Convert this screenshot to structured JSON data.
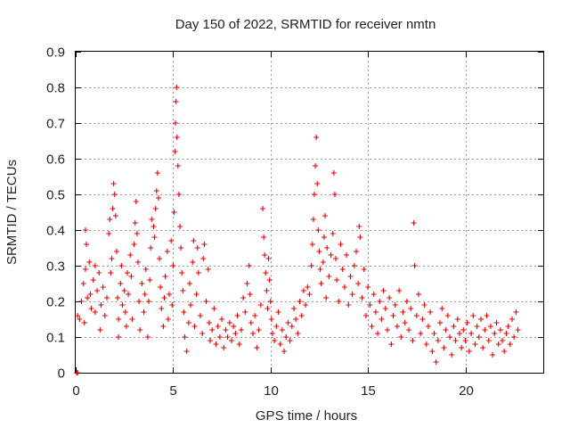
{
  "chart_data": {
    "type": "scatter",
    "title": "Day 150 of 2022, SRMTID for receiver nmtn",
    "xlabel": "GPS time / hours",
    "ylabel": "SRMTID / TECUs",
    "xlim": [
      0,
      24
    ],
    "ylim": [
      0,
      0.9
    ],
    "xticks": [
      0,
      5,
      10,
      15,
      20
    ],
    "xtick_labels": [
      "0",
      "5",
      "10",
      "15",
      "20"
    ],
    "yticks": [
      0,
      0.1,
      0.2,
      0.3,
      0.4,
      0.5,
      0.6,
      0.7,
      0.8,
      0.9
    ],
    "ytick_labels": [
      "0",
      "0.1",
      "0.2",
      "0.3",
      "0.4",
      "0.5",
      "0.6",
      "0.7",
      "0.8",
      "0.9"
    ],
    "grid": true,
    "marker": "plus",
    "color": "#e60000",
    "series": [
      {
        "name": "SRMTID",
        "points": [
          [
            0.05,
            0.0
          ],
          [
            0.1,
            0.0
          ],
          [
            0.1,
            0.16
          ],
          [
            0.2,
            0.15
          ],
          [
            0.3,
            0.2
          ],
          [
            0.4,
            0.25
          ],
          [
            0.45,
            0.14
          ],
          [
            0.5,
            0.29
          ],
          [
            0.5,
            0.4
          ],
          [
            0.55,
            0.36
          ],
          [
            0.6,
            0.21
          ],
          [
            0.7,
            0.31
          ],
          [
            0.75,
            0.22
          ],
          [
            0.8,
            0.18
          ],
          [
            0.9,
            0.26
          ],
          [
            1.0,
            0.3
          ],
          [
            1.0,
            0.17
          ],
          [
            1.1,
            0.23
          ],
          [
            1.2,
            0.28
          ],
          [
            1.25,
            0.12
          ],
          [
            1.3,
            0.19
          ],
          [
            1.4,
            0.24
          ],
          [
            1.5,
            0.16
          ],
          [
            1.6,
            0.21
          ],
          [
            1.7,
            0.39
          ],
          [
            1.75,
            0.43
          ],
          [
            1.8,
            0.28
          ],
          [
            1.85,
            0.32
          ],
          [
            1.9,
            0.46
          ],
          [
            1.95,
            0.53
          ],
          [
            2.0,
            0.5
          ],
          [
            2.05,
            0.44
          ],
          [
            2.1,
            0.34
          ],
          [
            2.15,
            0.21
          ],
          [
            2.2,
            0.15
          ],
          [
            2.2,
            0.1
          ],
          [
            2.3,
            0.25
          ],
          [
            2.35,
            0.3
          ],
          [
            2.4,
            0.19
          ],
          [
            2.5,
            0.23
          ],
          [
            2.55,
            0.17
          ],
          [
            2.6,
            0.13
          ],
          [
            2.65,
            0.28
          ],
          [
            2.7,
            0.22
          ],
          [
            2.8,
            0.33
          ],
          [
            2.85,
            0.27
          ],
          [
            2.9,
            0.15
          ],
          [
            3.0,
            0.36
          ],
          [
            3.05,
            0.42
          ],
          [
            3.1,
            0.48
          ],
          [
            3.15,
            0.39
          ],
          [
            3.2,
            0.31
          ],
          [
            3.25,
            0.2
          ],
          [
            3.3,
            0.12
          ],
          [
            3.4,
            0.25
          ],
          [
            3.5,
            0.17
          ],
          [
            3.55,
            0.22
          ],
          [
            3.6,
            0.29
          ],
          [
            3.7,
            0.1
          ],
          [
            3.75,
            0.2
          ],
          [
            3.8,
            0.26
          ],
          [
            3.85,
            0.35
          ],
          [
            3.9,
            0.43
          ],
          [
            4.0,
            0.41
          ],
          [
            4.05,
            0.38
          ],
          [
            4.1,
            0.46
          ],
          [
            4.15,
            0.51
          ],
          [
            4.2,
            0.56
          ],
          [
            4.25,
            0.49
          ],
          [
            4.3,
            0.32
          ],
          [
            4.35,
            0.24
          ],
          [
            4.4,
            0.18
          ],
          [
            4.5,
            0.13
          ],
          [
            4.55,
            0.21
          ],
          [
            4.6,
            0.27
          ],
          [
            4.7,
            0.34
          ],
          [
            4.75,
            0.15
          ],
          [
            4.8,
            0.22
          ],
          [
            4.9,
            0.37
          ],
          [
            4.95,
            0.19
          ],
          [
            5.0,
            0.3
          ],
          [
            5.05,
            0.45
          ],
          [
            5.1,
            0.62
          ],
          [
            5.12,
            0.7
          ],
          [
            5.15,
            0.76
          ],
          [
            5.18,
            0.8
          ],
          [
            5.2,
            0.66
          ],
          [
            5.25,
            0.58
          ],
          [
            5.3,
            0.5
          ],
          [
            5.35,
            0.41
          ],
          [
            5.4,
            0.35
          ],
          [
            5.45,
            0.28
          ],
          [
            5.5,
            0.23
          ],
          [
            5.55,
            0.17
          ],
          [
            5.6,
            0.1
          ],
          [
            5.7,
            0.06
          ],
          [
            5.8,
            0.14
          ],
          [
            5.85,
            0.25
          ],
          [
            5.9,
            0.19
          ],
          [
            6.0,
            0.31
          ],
          [
            6.05,
            0.37
          ],
          [
            6.1,
            0.13
          ],
          [
            6.2,
            0.22
          ],
          [
            6.25,
            0.35
          ],
          [
            6.3,
            0.28
          ],
          [
            6.4,
            0.16
          ],
          [
            6.5,
            0.11
          ],
          [
            6.55,
            0.32
          ],
          [
            6.6,
            0.36
          ],
          [
            6.7,
            0.2
          ],
          [
            6.8,
            0.29
          ],
          [
            6.85,
            0.14
          ],
          [
            6.9,
            0.09
          ],
          [
            7.0,
            0.12
          ],
          [
            7.1,
            0.18
          ],
          [
            7.2,
            0.08
          ],
          [
            7.3,
            0.13
          ],
          [
            7.4,
            0.1
          ],
          [
            7.5,
            0.15
          ],
          [
            7.6,
            0.07
          ],
          [
            7.7,
            0.12
          ],
          [
            7.8,
            0.1
          ],
          [
            7.9,
            0.14
          ],
          [
            8.0,
            0.09
          ],
          [
            8.1,
            0.13
          ],
          [
            8.2,
            0.11
          ],
          [
            8.3,
            0.16
          ],
          [
            8.4,
            0.08
          ],
          [
            8.5,
            0.12
          ],
          [
            8.6,
            0.21
          ],
          [
            8.7,
            0.17
          ],
          [
            8.8,
            0.25
          ],
          [
            8.9,
            0.3
          ],
          [
            8.95,
            0.22
          ],
          [
            9.0,
            0.14
          ],
          [
            9.1,
            0.11
          ],
          [
            9.2,
            0.16
          ],
          [
            9.3,
            0.07
          ],
          [
            9.4,
            0.12
          ],
          [
            9.5,
            0.19
          ],
          [
            9.6,
            0.46
          ],
          [
            9.65,
            0.38
          ],
          [
            9.7,
            0.33
          ],
          [
            9.75,
            0.28
          ],
          [
            9.8,
            0.23
          ],
          [
            9.85,
            0.18
          ],
          [
            9.9,
            0.32
          ],
          [
            9.95,
            0.26
          ],
          [
            10.0,
            0.2
          ],
          [
            10.05,
            0.15
          ],
          [
            10.1,
            0.11
          ],
          [
            10.2,
            0.09
          ],
          [
            10.3,
            0.13
          ],
          [
            10.4,
            0.17
          ],
          [
            10.5,
            0.08
          ],
          [
            10.6,
            0.12
          ],
          [
            10.7,
            0.06
          ],
          [
            10.8,
            0.1
          ],
          [
            10.9,
            0.14
          ],
          [
            11.0,
            0.09
          ],
          [
            11.1,
            0.13
          ],
          [
            11.2,
            0.18
          ],
          [
            11.3,
            0.15
          ],
          [
            11.4,
            0.11
          ],
          [
            11.5,
            0.2
          ],
          [
            11.6,
            0.16
          ],
          [
            11.7,
            0.23
          ],
          [
            11.8,
            0.19
          ],
          [
            11.9,
            0.24
          ],
          [
            12.0,
            0.22
          ],
          [
            12.1,
            0.3
          ],
          [
            12.15,
            0.36
          ],
          [
            12.2,
            0.43
          ],
          [
            12.25,
            0.5
          ],
          [
            12.3,
            0.58
          ],
          [
            12.35,
            0.66
          ],
          [
            12.4,
            0.53
          ],
          [
            12.45,
            0.4
          ],
          [
            12.5,
            0.34
          ],
          [
            12.55,
            0.29
          ],
          [
            12.6,
            0.25
          ],
          [
            12.7,
            0.31
          ],
          [
            12.75,
            0.38
          ],
          [
            12.8,
            0.44
          ],
          [
            12.85,
            0.21
          ],
          [
            12.9,
            0.35
          ],
          [
            13.0,
            0.27
          ],
          [
            13.1,
            0.33
          ],
          [
            13.2,
            0.39
          ],
          [
            13.25,
            0.56
          ],
          [
            13.3,
            0.5
          ],
          [
            13.35,
            0.32
          ],
          [
            13.4,
            0.26
          ],
          [
            13.5,
            0.2
          ],
          [
            13.6,
            0.36
          ],
          [
            13.7,
            0.29
          ],
          [
            13.8,
            0.24
          ],
          [
            13.9,
            0.33
          ],
          [
            14.0,
            0.19
          ],
          [
            14.1,
            0.27
          ],
          [
            14.2,
            0.22
          ],
          [
            14.3,
            0.3
          ],
          [
            14.4,
            0.34
          ],
          [
            14.5,
            0.25
          ],
          [
            14.55,
            0.41
          ],
          [
            14.6,
            0.38
          ],
          [
            14.7,
            0.21
          ],
          [
            14.8,
            0.29
          ],
          [
            14.9,
            0.16
          ],
          [
            15.0,
            0.24
          ],
          [
            15.1,
            0.19
          ],
          [
            15.2,
            0.13
          ],
          [
            15.3,
            0.22
          ],
          [
            15.4,
            0.17
          ],
          [
            15.5,
            0.11
          ],
          [
            15.6,
            0.2
          ],
          [
            15.7,
            0.15
          ],
          [
            15.8,
            0.23
          ],
          [
            15.9,
            0.18
          ],
          [
            16.0,
            0.12
          ],
          [
            16.1,
            0.21
          ],
          [
            16.2,
            0.08
          ],
          [
            16.3,
            0.16
          ],
          [
            16.4,
            0.19
          ],
          [
            16.5,
            0.13
          ],
          [
            16.6,
            0.23
          ],
          [
            16.7,
            0.1
          ],
          [
            16.8,
            0.17
          ],
          [
            16.9,
            0.14
          ],
          [
            17.0,
            0.2
          ],
          [
            17.1,
            0.12
          ],
          [
            17.2,
            0.18
          ],
          [
            17.3,
            0.09
          ],
          [
            17.35,
            0.42
          ],
          [
            17.4,
            0.3
          ],
          [
            17.5,
            0.16
          ],
          [
            17.6,
            0.22
          ],
          [
            17.7,
            0.11
          ],
          [
            17.8,
            0.15
          ],
          [
            17.9,
            0.19
          ],
          [
            18.0,
            0.08
          ],
          [
            18.1,
            0.13
          ],
          [
            18.2,
            0.17
          ],
          [
            18.3,
            0.06
          ],
          [
            18.4,
            0.11
          ],
          [
            18.5,
            0.03
          ],
          [
            18.6,
            0.09
          ],
          [
            18.7,
            0.14
          ],
          [
            18.8,
            0.18
          ],
          [
            18.9,
            0.07
          ],
          [
            19.0,
            0.12
          ],
          [
            19.1,
            0.16
          ],
          [
            19.2,
            0.1
          ],
          [
            19.3,
            0.05
          ],
          [
            19.4,
            0.13
          ],
          [
            19.5,
            0.09
          ],
          [
            19.6,
            0.15
          ],
          [
            19.7,
            0.11
          ],
          [
            19.8,
            0.07
          ],
          [
            19.9,
            0.12
          ],
          [
            20.0,
            0.09
          ],
          [
            20.1,
            0.14
          ],
          [
            20.2,
            0.06
          ],
          [
            20.3,
            0.11
          ],
          [
            20.4,
            0.16
          ],
          [
            20.5,
            0.08
          ],
          [
            20.6,
            0.13
          ],
          [
            20.7,
            0.1
          ],
          [
            20.8,
            0.15
          ],
          [
            20.9,
            0.07
          ],
          [
            21.0,
            0.12
          ],
          [
            21.1,
            0.16
          ],
          [
            21.2,
            0.09
          ],
          [
            21.3,
            0.13
          ],
          [
            21.4,
            0.05
          ],
          [
            21.5,
            0.11
          ],
          [
            21.6,
            0.14
          ],
          [
            21.7,
            0.08
          ],
          [
            21.8,
            0.12
          ],
          [
            21.9,
            0.09
          ],
          [
            22.0,
            0.06
          ],
          [
            22.1,
            0.11
          ],
          [
            22.2,
            0.13
          ],
          [
            22.3,
            0.08
          ],
          [
            22.4,
            0.15
          ],
          [
            22.5,
            0.1
          ],
          [
            22.6,
            0.17
          ],
          [
            22.7,
            0.12
          ]
        ]
      }
    ]
  }
}
